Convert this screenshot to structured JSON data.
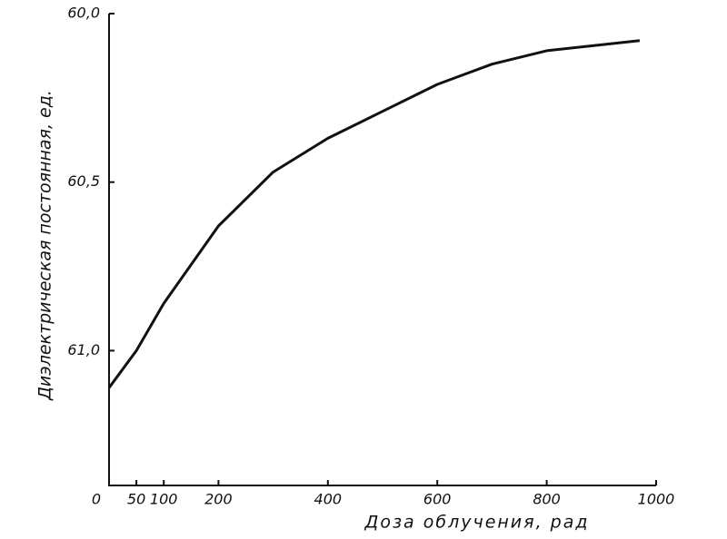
{
  "chart_data": {
    "type": "line",
    "ylabel": "Диэлектрическая постоянная, ед.",
    "xlabel": "Доза облучения, рад",
    "x": [
      0,
      50,
      100,
      200,
      300,
      400,
      500,
      600,
      700,
      800,
      970
    ],
    "values": [
      61.11,
      61.0,
      60.86,
      60.63,
      60.47,
      60.37,
      60.29,
      60.21,
      60.15,
      60.11,
      60.08
    ],
    "color": "#111111",
    "xlim": [
      0,
      1000
    ],
    "xticks": [
      0,
      50,
      100,
      200,
      400,
      600,
      800,
      1000
    ],
    "ylim": [
      61.4,
      60.0
    ],
    "yticks": [
      {
        "value": 60.0,
        "label": "60,0"
      },
      {
        "value": 60.5,
        "label": "60,5"
      },
      {
        "value": 61.0,
        "label": "61,0"
      }
    ],
    "grid": false
  }
}
